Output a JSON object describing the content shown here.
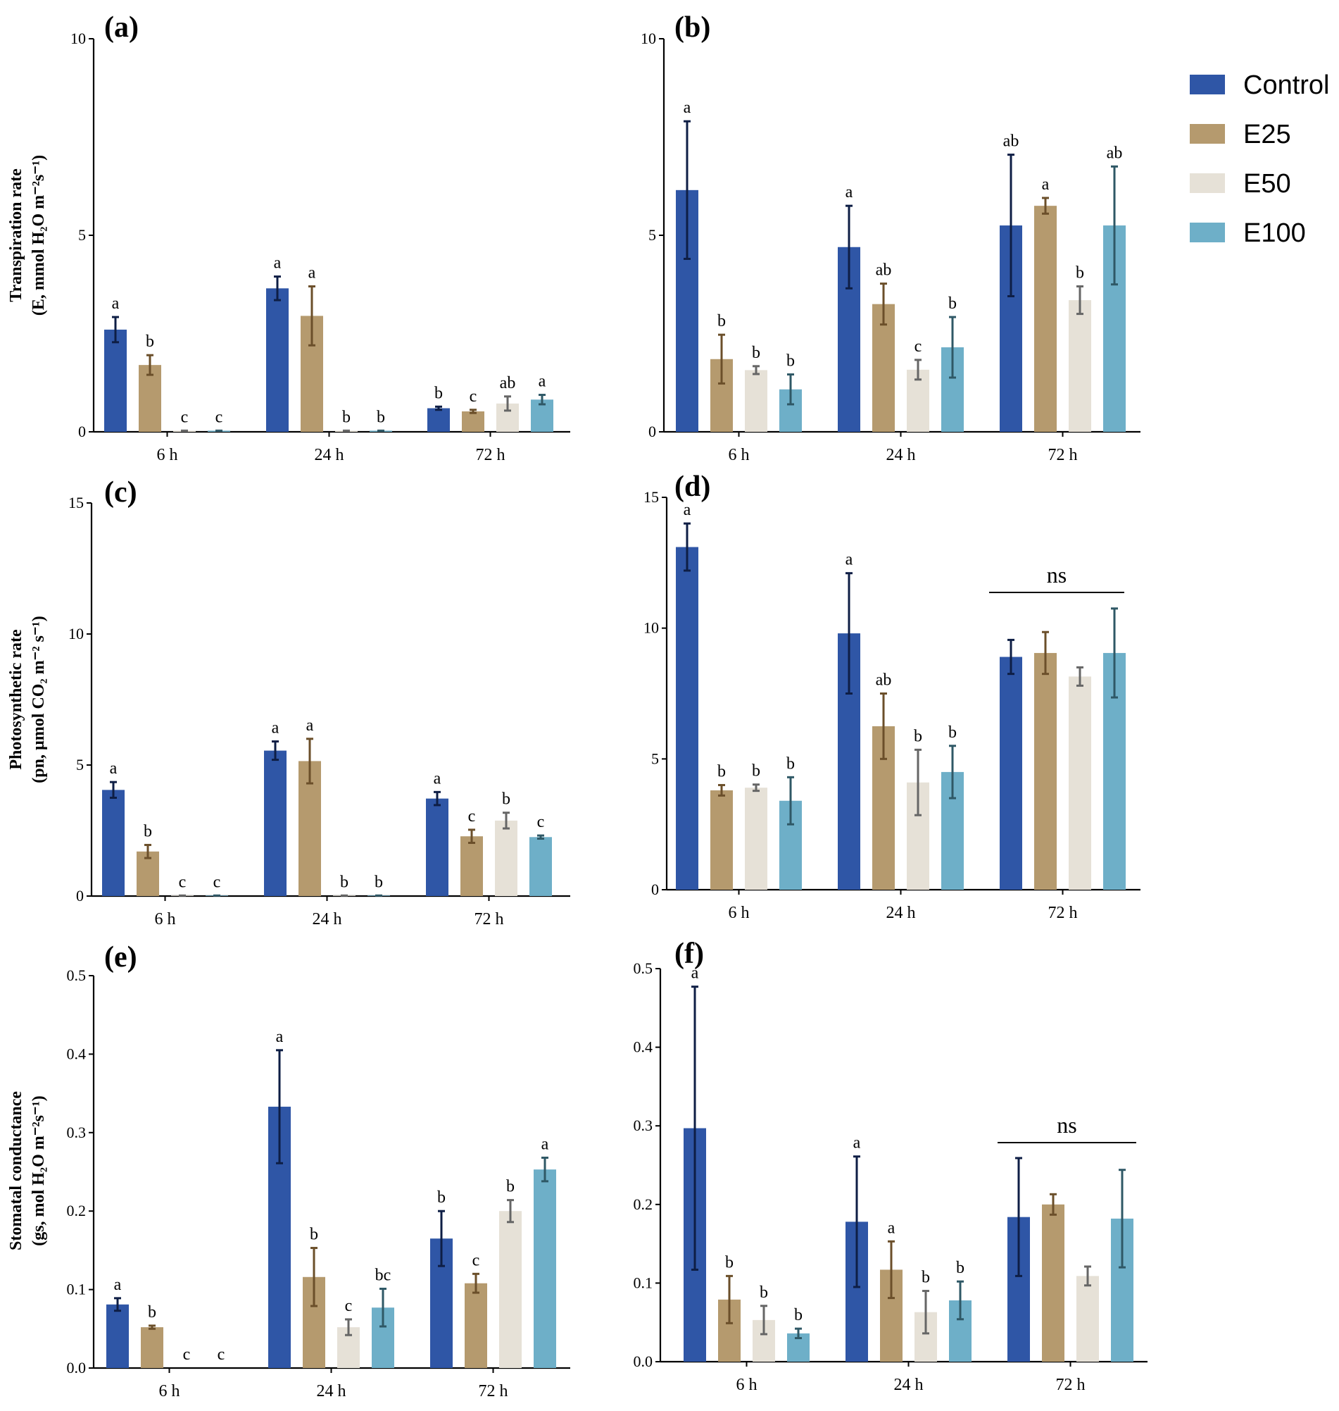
{
  "colors": {
    "Control": "#2f56a6",
    "E25": "#b59a6e",
    "E50": "#e6e1d7",
    "E100": "#6eafc8",
    "err_Control": "#0e1e45",
    "err_E25": "#6b4f2a",
    "err_E50": "#666666",
    "err_E100": "#2f5866"
  },
  "legend": [
    "Control",
    "E25",
    "E50",
    "E100"
  ],
  "chart_data": [
    {
      "type": "bar",
      "label": "(a)",
      "ylabel_line1": "Transpiration rate",
      "ylabel_line2": "(E, mmol H₂O m⁻²s⁻¹)",
      "ylim": [
        0,
        10
      ],
      "ticks": [
        "0",
        "5",
        "10"
      ],
      "tick_values": [
        0,
        5,
        10
      ],
      "categories": [
        "6 h",
        "24 h",
        "72 h"
      ],
      "series": [
        {
          "name": "Control",
          "values": [
            2.6,
            3.65,
            0.6
          ],
          "errors": [
            0.32,
            0.3,
            0.04
          ],
          "letters": [
            "a",
            "a",
            "b"
          ]
        },
        {
          "name": "E25",
          "values": [
            1.7,
            2.95,
            0.52
          ],
          "errors": [
            0.25,
            0.75,
            0.04
          ],
          "letters": [
            "b",
            "a",
            "c"
          ]
        },
        {
          "name": "E50",
          "values": [
            0.03,
            0.03,
            0.72
          ],
          "errors": [
            0.0,
            0.0,
            0.18
          ],
          "letters": [
            "c",
            "b",
            "ab"
          ]
        },
        {
          "name": "E100",
          "values": [
            0.03,
            0.03,
            0.82
          ],
          "errors": [
            0.0,
            0.0,
            0.12
          ],
          "letters": [
            "c",
            "b",
            "a"
          ]
        }
      ]
    },
    {
      "type": "bar",
      "label": "(b)",
      "ylim": [
        0,
        10
      ],
      "ticks": [
        "0",
        "5",
        "10"
      ],
      "tick_values": [
        0,
        5,
        10
      ],
      "categories": [
        "6 h",
        "24 h",
        "72 h"
      ],
      "series": [
        {
          "name": "Control",
          "values": [
            6.15,
            4.7,
            5.25
          ],
          "errors": [
            1.75,
            1.05,
            1.8
          ],
          "letters": [
            "a",
            "a",
            "ab"
          ]
        },
        {
          "name": "E25",
          "values": [
            1.85,
            3.25,
            5.75
          ],
          "errors": [
            0.62,
            0.52,
            0.2
          ],
          "letters": [
            "b",
            "ab",
            "a"
          ]
        },
        {
          "name": "E50",
          "values": [
            1.57,
            1.58,
            3.35
          ],
          "errors": [
            0.1,
            0.25,
            0.35
          ],
          "letters": [
            "b",
            "c",
            "b"
          ]
        },
        {
          "name": "E100",
          "values": [
            1.08,
            2.15,
            5.25
          ],
          "errors": [
            0.38,
            0.77,
            1.5
          ],
          "letters": [
            "b",
            "b",
            "ab"
          ]
        }
      ]
    },
    {
      "type": "bar",
      "label": "(c)",
      "ylabel_line1": "Photosynthetic rate",
      "ylabel_line2": "(pn, µmol CO₂ m⁻² s⁻¹)",
      "ylim": [
        0,
        15
      ],
      "ticks": [
        "0",
        "5",
        "10",
        "15"
      ],
      "tick_values": [
        0,
        5,
        10,
        15
      ],
      "categories": [
        "6 h",
        "24 h",
        "72 h"
      ],
      "series": [
        {
          "name": "Control",
          "values": [
            4.05,
            5.55,
            3.72
          ],
          "errors": [
            0.3,
            0.35,
            0.25
          ],
          "letters": [
            "a",
            "a",
            "a"
          ]
        },
        {
          "name": "E25",
          "values": [
            1.7,
            5.15,
            2.28
          ],
          "errors": [
            0.25,
            0.85,
            0.25
          ],
          "letters": [
            "b",
            "a",
            "c"
          ]
        },
        {
          "name": "E50",
          "values": [
            0.02,
            0.02,
            2.88
          ],
          "errors": [
            0.0,
            0.0,
            0.3
          ],
          "letters": [
            "c",
            "b",
            "b"
          ]
        },
        {
          "name": "E100",
          "values": [
            0.02,
            0.02,
            2.25
          ],
          "errors": [
            0.0,
            0.0,
            0.06
          ],
          "letters": [
            "c",
            "b",
            "c"
          ]
        }
      ]
    },
    {
      "type": "bar",
      "label": "(d)",
      "ylim": [
        0,
        15
      ],
      "ticks": [
        "0",
        "5",
        "10",
        "15"
      ],
      "tick_values": [
        0,
        5,
        10,
        15
      ],
      "categories": [
        "6 h",
        "24 h",
        "72 h"
      ],
      "ns_label": "ns",
      "series": [
        {
          "name": "Control",
          "values": [
            13.1,
            9.8,
            8.9
          ],
          "errors": [
            0.9,
            2.3,
            0.65
          ],
          "letters": [
            "a",
            "a",
            ""
          ]
        },
        {
          "name": "E25",
          "values": [
            3.8,
            6.25,
            9.05
          ],
          "errors": [
            0.2,
            1.25,
            0.8
          ],
          "letters": [
            "b",
            "ab",
            ""
          ]
        },
        {
          "name": "E50",
          "values": [
            3.9,
            4.1,
            8.15
          ],
          "errors": [
            0.12,
            1.25,
            0.35
          ],
          "letters": [
            "b",
            "b",
            ""
          ]
        },
        {
          "name": "E100",
          "values": [
            3.4,
            4.5,
            9.05
          ],
          "errors": [
            0.9,
            1.0,
            1.7
          ],
          "letters": [
            "b",
            "b",
            ""
          ]
        }
      ]
    },
    {
      "type": "bar",
      "label": "(e)",
      "ylabel_line1": "Stomatal conductance",
      "ylabel_line2": "(gs, mol H₂O m⁻²s⁻¹)",
      "ylim": [
        0,
        0.5
      ],
      "ticks": [
        "0.0",
        "0.1",
        "0.2",
        "0.3",
        "0.4",
        "0.5"
      ],
      "tick_values": [
        0,
        0.1,
        0.2,
        0.3,
        0.4,
        0.5
      ],
      "categories": [
        "6 h",
        "24 h",
        "72 h"
      ],
      "series": [
        {
          "name": "Control",
          "values": [
            0.081,
            0.333,
            0.165
          ],
          "errors": [
            0.008,
            0.072,
            0.035
          ],
          "letters": [
            "a",
            "a",
            "b"
          ]
        },
        {
          "name": "E25",
          "values": [
            0.052,
            0.116,
            0.108
          ],
          "errors": [
            0.002,
            0.037,
            0.012
          ],
          "letters": [
            "b",
            "b",
            "c"
          ]
        },
        {
          "name": "E50",
          "values": [
            0.0,
            0.052,
            0.2
          ],
          "errors": [
            0.0,
            0.01,
            0.014
          ],
          "letters": [
            "c",
            "c",
            "b"
          ]
        },
        {
          "name": "E100",
          "values": [
            0.0,
            0.077,
            0.253
          ],
          "errors": [
            0.0,
            0.024,
            0.015
          ],
          "letters": [
            "c",
            "bc",
            "a"
          ]
        }
      ]
    },
    {
      "type": "bar",
      "label": "(f)",
      "ylim": [
        0,
        0.5
      ],
      "ticks": [
        "0.0",
        "0.1",
        "0.2",
        "0.3",
        "0.4",
        "0.5"
      ],
      "tick_values": [
        0,
        0.1,
        0.2,
        0.3,
        0.4,
        0.5
      ],
      "categories": [
        "6 h",
        "24 h",
        "72 h"
      ],
      "ns_label": "ns",
      "series": [
        {
          "name": "Control",
          "values": [
            0.297,
            0.178,
            0.184
          ],
          "errors": [
            0.18,
            0.083,
            0.075
          ],
          "letters": [
            "a",
            "a",
            ""
          ]
        },
        {
          "name": "E25",
          "values": [
            0.079,
            0.117,
            0.2
          ],
          "errors": [
            0.03,
            0.036,
            0.013
          ],
          "letters": [
            "b",
            "a",
            ""
          ]
        },
        {
          "name": "E50",
          "values": [
            0.053,
            0.063,
            0.109
          ],
          "errors": [
            0.018,
            0.027,
            0.012
          ],
          "letters": [
            "b",
            "b",
            ""
          ]
        },
        {
          "name": "E100",
          "values": [
            0.036,
            0.078,
            0.182
          ],
          "errors": [
            0.006,
            0.024,
            0.062
          ],
          "letters": [
            "b",
            "b",
            ""
          ]
        }
      ]
    }
  ]
}
